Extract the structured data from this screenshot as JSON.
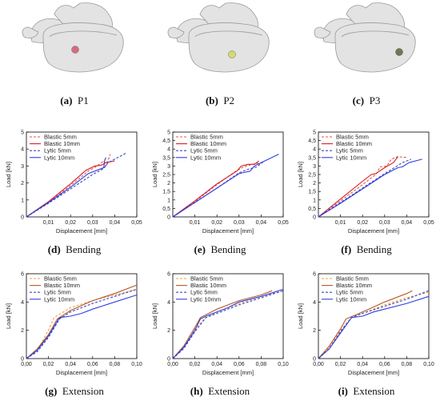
{
  "captions": [
    {
      "label": "(a)",
      "text": "P1"
    },
    {
      "label": "(b)",
      "text": "P2"
    },
    {
      "label": "(c)",
      "text": "P3"
    },
    {
      "label": "(d)",
      "text": "Bending"
    },
    {
      "label": "(e)",
      "text": "Bending"
    },
    {
      "label": "(f)",
      "text": "Bending"
    },
    {
      "label": "(g)",
      "text": "Extension"
    },
    {
      "label": "(h)",
      "text": "Extension"
    },
    {
      "label": "(i)",
      "text": "Extension"
    }
  ],
  "images": [
    {
      "marker_color": "#d96b7e"
    },
    {
      "marker_color": "#d6d96b"
    },
    {
      "marker_color": "#6b7a55"
    }
  ],
  "chart_data": [
    {
      "type": "line",
      "xlabel": "Displacement [mm]",
      "ylabel": "Load [kN]",
      "xlim": [
        0,
        0.05
      ],
      "ylim": [
        0,
        5
      ],
      "xticks": [
        0.01,
        0.02,
        0.03,
        0.04,
        0.05
      ],
      "xtick_labels": [
        "0,01",
        "0,02",
        "0,03",
        "0,04",
        "0,05"
      ],
      "yticks": [
        0,
        1,
        2,
        3,
        4,
        5
      ],
      "ytick_labels": [
        "0",
        "1",
        "2",
        "3",
        "4",
        "5"
      ],
      "legend": "top-left",
      "grid": false,
      "series": [
        {
          "name": "Blastic 5mm",
          "color": "#e8524f",
          "dash": "dashed",
          "x": [
            0,
            0.01,
            0.02,
            0.028,
            0.032,
            0.035,
            0.036,
            0.038
          ],
          "y": [
            0,
            0.85,
            1.85,
            2.7,
            3.0,
            3.3,
            3.0,
            3.7
          ]
        },
        {
          "name": "Blastic 10mm",
          "color": "#d41f1f",
          "dash": "solid",
          "x": [
            0,
            0.01,
            0.02,
            0.027,
            0.031,
            0.034,
            0.036,
            0.04
          ],
          "y": [
            0,
            0.9,
            1.95,
            2.75,
            3.0,
            3.05,
            3.2,
            3.3
          ]
        },
        {
          "name": "Lytic 5mm",
          "color": "#3a46c2",
          "dash": "dashed",
          "x": [
            0,
            0.01,
            0.02,
            0.03,
            0.035,
            0.037,
            0.045
          ],
          "y": [
            0,
            0.8,
            1.65,
            2.5,
            2.85,
            3.2,
            3.75
          ]
        },
        {
          "name": "Lytic 10mm",
          "color": "#2f3fe0",
          "dash": "solid",
          "x": [
            0,
            0.01,
            0.02,
            0.028,
            0.032,
            0.035,
            0.0355,
            0.036
          ],
          "y": [
            0,
            0.85,
            1.75,
            2.55,
            2.75,
            2.9,
            3.35,
            3.5
          ]
        }
      ]
    },
    {
      "type": "line",
      "xlabel": "Displacement [mm]",
      "ylabel": "Load [kN]",
      "xlim": [
        0,
        0.05
      ],
      "ylim": [
        0,
        5
      ],
      "xticks": [
        0.01,
        0.02,
        0.03,
        0.04,
        0.05
      ],
      "xtick_labels": [
        "0,01",
        "0,02",
        "0,03",
        "0,04",
        "0,05"
      ],
      "yticks": [
        0,
        0.5,
        1,
        1.5,
        2,
        2.5,
        3,
        3.5,
        4,
        4.5,
        5
      ],
      "ytick_labels": [
        "0",
        "0,5",
        "1",
        "1,5",
        "2",
        "2,5",
        "3",
        "3,5",
        "4",
        "4,5",
        "5"
      ],
      "legend": "top-left",
      "grid": false,
      "series": [
        {
          "name": "Blastic 5mm",
          "color": "#e8524f",
          "dash": "dashed",
          "x": [
            0,
            0.01,
            0.02,
            0.028,
            0.032,
            0.036,
            0.04
          ],
          "y": [
            0,
            0.9,
            1.9,
            2.65,
            2.95,
            3.1,
            3.2
          ]
        },
        {
          "name": "Blastic 10mm",
          "color": "#d41f1f",
          "dash": "solid",
          "x": [
            0,
            0.01,
            0.02,
            0.029,
            0.031,
            0.034,
            0.037,
            0.039
          ],
          "y": [
            0,
            0.95,
            1.95,
            2.7,
            3.0,
            3.1,
            3.1,
            3.3
          ]
        },
        {
          "name": "Lytic 5mm",
          "color": "#3a46c2",
          "dash": "dashed",
          "x": [
            0,
            0.01,
            0.02,
            0.03,
            0.034,
            0.038,
            0.041
          ],
          "y": [
            0,
            0.85,
            1.7,
            2.6,
            2.8,
            2.95,
            3.25
          ]
        },
        {
          "name": "Lytic 10mm",
          "color": "#2f3fe0",
          "dash": "solid",
          "x": [
            0,
            0.01,
            0.02,
            0.03,
            0.035,
            0.037,
            0.04,
            0.048
          ],
          "y": [
            0,
            0.85,
            1.7,
            2.55,
            2.7,
            3.0,
            3.2,
            3.7
          ]
        }
      ]
    },
    {
      "type": "line",
      "xlabel": "Displacement [mm]",
      "ylabel": "Load [kN]",
      "xlim": [
        0,
        0.05
      ],
      "ylim": [
        0,
        5
      ],
      "xticks": [
        0.01,
        0.02,
        0.03,
        0.04,
        0.05
      ],
      "xtick_labels": [
        "0,01",
        "0,02",
        "0,03",
        "0,04",
        "0,05"
      ],
      "yticks": [
        0,
        0.5,
        1,
        1.5,
        2,
        2.5,
        3,
        3.5,
        4,
        4.5,
        5
      ],
      "ytick_labels": [
        "0",
        "0,5",
        "1",
        "1,5",
        "2",
        "2,5",
        "3",
        "3,5",
        "4",
        "4,5",
        "5"
      ],
      "legend": "top-left",
      "grid": false,
      "series": [
        {
          "name": "Blastic 5mm",
          "color": "#e8524f",
          "dash": "dashed",
          "x": [
            0,
            0.01,
            0.02,
            0.026,
            0.028,
            0.031,
            0.033,
            0.036,
            0.04
          ],
          "y": [
            0,
            0.95,
            1.9,
            2.5,
            2.95,
            3.0,
            3.4,
            3.55,
            3.5
          ]
        },
        {
          "name": "Blastic 10mm",
          "color": "#d41f1f",
          "dash": "solid",
          "x": [
            0,
            0.01,
            0.02,
            0.024,
            0.026,
            0.03,
            0.034,
            0.036
          ],
          "y": [
            0,
            1.05,
            2.1,
            2.5,
            2.55,
            2.9,
            3.2,
            3.55
          ]
        },
        {
          "name": "Lytic 5mm",
          "color": "#3a46c2",
          "dash": "dashed",
          "x": [
            0,
            0.01,
            0.02,
            0.03,
            0.035,
            0.038,
            0.042
          ],
          "y": [
            0,
            0.85,
            1.7,
            2.55,
            2.95,
            3.2,
            3.4
          ]
        },
        {
          "name": "Lytic 10mm",
          "color": "#2f3fe0",
          "dash": "solid",
          "x": [
            0,
            0.01,
            0.02,
            0.03,
            0.036,
            0.038,
            0.041,
            0.047
          ],
          "y": [
            0,
            0.8,
            1.65,
            2.5,
            2.9,
            2.95,
            3.2,
            3.4
          ]
        }
      ]
    },
    {
      "type": "line",
      "xlabel": "Displacement [mm]",
      "ylabel": "Load [kN]",
      "xlim": [
        0,
        0.1
      ],
      "ylim": [
        0,
        6
      ],
      "xticks": [
        0,
        0.02,
        0.04,
        0.06,
        0.08,
        0.1
      ],
      "xtick_labels": [
        "0,00",
        "0,02",
        "0,04",
        "0,06",
        "0,08",
        "0,10"
      ],
      "yticks": [
        0,
        2,
        4,
        6
      ],
      "ytick_labels": [
        "0",
        "2",
        "4",
        "6"
      ],
      "legend": "top-left",
      "grid": false,
      "series": [
        {
          "name": "Blastic 5mm",
          "color": "#f0a040",
          "dash": "dashed",
          "x": [
            0,
            0.01,
            0.02,
            0.025,
            0.04,
            0.06,
            0.08,
            0.1
          ],
          "y": [
            0,
            0.6,
            2.0,
            2.9,
            3.6,
            4.1,
            4.5,
            4.9
          ]
        },
        {
          "name": "Blastic 10mm",
          "color": "#b35a2a",
          "dash": "solid",
          "x": [
            0,
            0.01,
            0.02,
            0.028,
            0.04,
            0.06,
            0.08,
            0.1
          ],
          "y": [
            0,
            0.7,
            1.7,
            2.8,
            3.4,
            4.1,
            4.6,
            5.2
          ]
        },
        {
          "name": "Lytic 5mm",
          "color": "#3a46c2",
          "dash": "dashed",
          "x": [
            0,
            0.01,
            0.02,
            0.03,
            0.04,
            0.06,
            0.08,
            0.1
          ],
          "y": [
            0,
            0.5,
            1.5,
            2.8,
            3.3,
            3.9,
            4.4,
            4.9
          ]
        },
        {
          "name": "Lytic 10mm",
          "color": "#2f3fe0",
          "dash": "solid",
          "x": [
            0,
            0.01,
            0.02,
            0.03,
            0.04,
            0.05,
            0.06,
            0.08,
            0.1
          ],
          "y": [
            0,
            0.6,
            1.6,
            2.9,
            3.0,
            3.2,
            3.5,
            4.0,
            4.5
          ]
        }
      ]
    },
    {
      "type": "line",
      "xlabel": "Displacement [mm]",
      "ylabel": "Load [kN]",
      "xlim": [
        0,
        0.1
      ],
      "ylim": [
        0,
        6
      ],
      "xticks": [
        0,
        0.02,
        0.04,
        0.06,
        0.08,
        0.1
      ],
      "xtick_labels": [
        "0,00",
        "0,02",
        "0,04",
        "0,06",
        "0,08",
        "0,10"
      ],
      "yticks": [
        0,
        2,
        4,
        6
      ],
      "ytick_labels": [
        "0",
        "2",
        "4",
        "6"
      ],
      "legend": "top-left",
      "grid": false,
      "series": [
        {
          "name": "Blastic 5mm",
          "color": "#f0a040",
          "dash": "dashed",
          "x": [
            0,
            0.01,
            0.02,
            0.03,
            0.04,
            0.06,
            0.08,
            0.1
          ],
          "y": [
            0,
            0.8,
            2.1,
            2.9,
            3.3,
            3.9,
            4.4,
            4.8
          ]
        },
        {
          "name": "Blastic 10mm",
          "color": "#b35a2a",
          "dash": "solid",
          "x": [
            0,
            0.01,
            0.02,
            0.025,
            0.04,
            0.06,
            0.08,
            0.09
          ],
          "y": [
            0,
            0.9,
            2.2,
            2.9,
            3.5,
            4.1,
            4.5,
            4.8
          ]
        },
        {
          "name": "Lytic 5mm",
          "color": "#3a46c2",
          "dash": "dashed",
          "x": [
            0,
            0.01,
            0.02,
            0.03,
            0.04,
            0.06,
            0.08,
            0.1
          ],
          "y": [
            0,
            0.7,
            1.9,
            2.9,
            3.2,
            3.8,
            4.3,
            4.8
          ]
        },
        {
          "name": "Lytic 10mm",
          "color": "#2f3fe0",
          "dash": "solid",
          "x": [
            0,
            0.01,
            0.02,
            0.025,
            0.03,
            0.05,
            0.06,
            0.08,
            0.1
          ],
          "y": [
            0,
            0.8,
            2.0,
            2.8,
            3.0,
            3.6,
            4.0,
            4.4,
            4.9
          ]
        }
      ]
    },
    {
      "type": "line",
      "xlabel": "Displacement [mm]",
      "ylabel": "Load [kN]",
      "xlim": [
        0,
        0.1
      ],
      "ylim": [
        0,
        6
      ],
      "xticks": [
        0,
        0.02,
        0.04,
        0.06,
        0.08,
        0.1
      ],
      "xtick_labels": [
        "0,00",
        "0,02",
        "0,04",
        "0,06",
        "0,08",
        "0,10"
      ],
      "yticks": [
        0,
        2,
        4,
        6
      ],
      "ytick_labels": [
        "0",
        "2",
        "4",
        "6"
      ],
      "legend": "top-left",
      "grid": false,
      "series": [
        {
          "name": "Blastic 5mm",
          "color": "#f0a040",
          "dash": "dashed",
          "x": [
            0,
            0.01,
            0.02,
            0.03,
            0.04,
            0.06,
            0.08,
            0.1
          ],
          "y": [
            0,
            0.8,
            2.0,
            2.9,
            3.2,
            3.8,
            4.3,
            4.7
          ]
        },
        {
          "name": "Blastic 10mm",
          "color": "#b35a2a",
          "dash": "solid",
          "x": [
            0,
            0.01,
            0.02,
            0.025,
            0.04,
            0.06,
            0.08,
            0.085
          ],
          "y": [
            0,
            0.9,
            2.1,
            2.8,
            3.3,
            4.0,
            4.6,
            4.8
          ]
        },
        {
          "name": "Lytic 5mm",
          "color": "#3a46c2",
          "dash": "dashed",
          "x": [
            0,
            0.01,
            0.02,
            0.03,
            0.04,
            0.06,
            0.08,
            0.1
          ],
          "y": [
            0,
            0.7,
            1.9,
            2.9,
            3.2,
            3.7,
            4.2,
            4.8
          ]
        },
        {
          "name": "Lytic 10mm",
          "color": "#2f3fe0",
          "dash": "solid",
          "x": [
            0,
            0.01,
            0.02,
            0.03,
            0.04,
            0.05,
            0.06,
            0.08,
            0.1
          ],
          "y": [
            0,
            0.7,
            1.8,
            2.9,
            3.0,
            3.3,
            3.5,
            3.9,
            4.4
          ]
        }
      ]
    }
  ]
}
